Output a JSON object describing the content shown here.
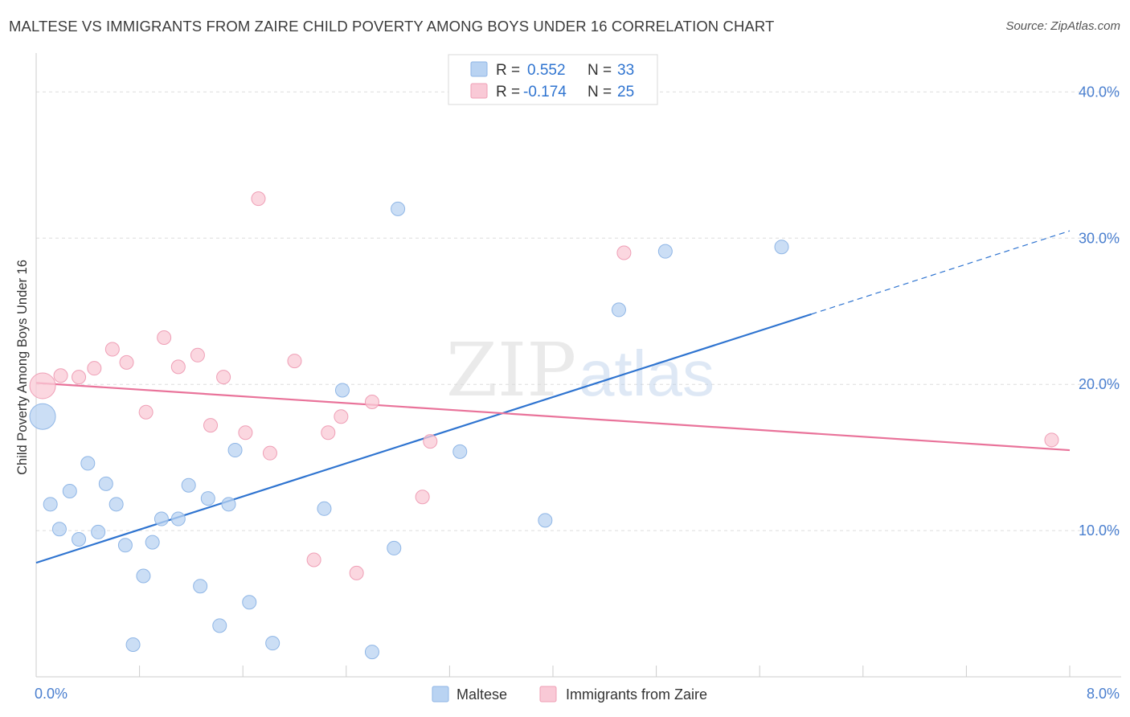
{
  "title": "MALTESE VS IMMIGRANTS FROM ZAIRE CHILD POVERTY AMONG BOYS UNDER 16 CORRELATION CHART",
  "source": "Source: ZipAtlas.com",
  "watermark": {
    "zip": "ZIP",
    "atlas": "atlas"
  },
  "colors": {
    "blue_fill": "#b9d3f2",
    "blue_stroke": "#8fb6e6",
    "blue_line": "#2f74d0",
    "pink_fill": "#f9c9d6",
    "pink_stroke": "#ef9fb6",
    "pink_line": "#e9739a",
    "axis_text": "#4a7fcf",
    "grid": "#dddddd"
  },
  "legend": {
    "rows": [
      {
        "r_label": "R = ",
        "r_value": "0.552",
        "n_label": "N = ",
        "n_value": "33"
      },
      {
        "r_label": "R = ",
        "r_value": "-0.174",
        "n_label": "N = ",
        "n_value": "25"
      }
    ]
  },
  "chart_data": {
    "type": "scatter",
    "title": "MALTESE VS IMMIGRANTS FROM ZAIRE CHILD POVERTY AMONG BOYS UNDER 16 CORRELATION CHART",
    "xlabel": "",
    "ylabel": "Child Poverty Among Boys Under 16",
    "xlim": [
      0,
      8
    ],
    "ylim": [
      0,
      42
    ],
    "x_tick_labels": [
      "0.0%",
      "8.0%"
    ],
    "y_ticks": [
      10,
      20,
      30,
      40
    ],
    "y_tick_labels": [
      "10.0%",
      "20.0%",
      "30.0%",
      "40.0%"
    ],
    "grid": true,
    "legend_position": "top-center",
    "series": [
      {
        "name": "Maltese",
        "color": "#b9d3f2",
        "r": 0.552,
        "n": 33,
        "trend": {
          "x0": 0.0,
          "y0": 7.8,
          "x1": 6.0,
          "y1": 24.8,
          "dash_to_x": 8.0,
          "dash_to_y": 30.5
        },
        "points": [
          {
            "x": 0.05,
            "y": 17.8,
            "size": "large"
          },
          {
            "x": 0.11,
            "y": 11.8
          },
          {
            "x": 0.18,
            "y": 10.1
          },
          {
            "x": 0.26,
            "y": 12.7
          },
          {
            "x": 0.33,
            "y": 9.4
          },
          {
            "x": 0.4,
            "y": 14.6
          },
          {
            "x": 0.48,
            "y": 9.9
          },
          {
            "x": 0.54,
            "y": 13.2
          },
          {
            "x": 0.62,
            "y": 11.8
          },
          {
            "x": 0.69,
            "y": 9.0
          },
          {
            "x": 0.75,
            "y": 2.2
          },
          {
            "x": 0.83,
            "y": 6.9
          },
          {
            "x": 0.9,
            "y": 9.2
          },
          {
            "x": 0.97,
            "y": 10.8
          },
          {
            "x": 1.1,
            "y": 10.8
          },
          {
            "x": 1.18,
            "y": 13.1
          },
          {
            "x": 1.27,
            "y": 6.2
          },
          {
            "x": 1.33,
            "y": 12.2
          },
          {
            "x": 1.42,
            "y": 3.5
          },
          {
            "x": 1.49,
            "y": 11.8
          },
          {
            "x": 1.54,
            "y": 15.5
          },
          {
            "x": 1.65,
            "y": 5.1
          },
          {
            "x": 1.83,
            "y": 2.3
          },
          {
            "x": 2.23,
            "y": 11.5
          },
          {
            "x": 2.37,
            "y": 19.6
          },
          {
            "x": 2.6,
            "y": 1.7
          },
          {
            "x": 2.77,
            "y": 8.8
          },
          {
            "x": 2.8,
            "y": 32.0
          },
          {
            "x": 3.28,
            "y": 15.4
          },
          {
            "x": 3.94,
            "y": 10.7
          },
          {
            "x": 4.51,
            "y": 25.1
          },
          {
            "x": 4.87,
            "y": 29.1
          },
          {
            "x": 5.77,
            "y": 29.4
          }
        ]
      },
      {
        "name": "Immigrants from Zaire",
        "color": "#f9c9d6",
        "r": -0.174,
        "n": 25,
        "trend": {
          "x0": 0.0,
          "y0": 20.1,
          "x1": 8.0,
          "y1": 15.5
        },
        "points": [
          {
            "x": 0.05,
            "y": 19.9,
            "size": "large"
          },
          {
            "x": 0.19,
            "y": 20.6
          },
          {
            "x": 0.33,
            "y": 20.5
          },
          {
            "x": 0.45,
            "y": 21.1
          },
          {
            "x": 0.59,
            "y": 22.4
          },
          {
            "x": 0.7,
            "y": 21.5
          },
          {
            "x": 0.85,
            "y": 18.1
          },
          {
            "x": 0.99,
            "y": 23.2
          },
          {
            "x": 1.1,
            "y": 21.2
          },
          {
            "x": 1.25,
            "y": 22.0
          },
          {
            "x": 1.35,
            "y": 17.2
          },
          {
            "x": 1.45,
            "y": 20.5
          },
          {
            "x": 1.62,
            "y": 16.7
          },
          {
            "x": 1.72,
            "y": 32.7
          },
          {
            "x": 1.81,
            "y": 15.3
          },
          {
            "x": 2.0,
            "y": 21.6
          },
          {
            "x": 2.15,
            "y": 8.0
          },
          {
            "x": 2.26,
            "y": 16.7
          },
          {
            "x": 2.36,
            "y": 17.8
          },
          {
            "x": 2.48,
            "y": 7.1
          },
          {
            "x": 2.6,
            "y": 18.8
          },
          {
            "x": 2.99,
            "y": 12.3
          },
          {
            "x": 3.05,
            "y": 16.1
          },
          {
            "x": 4.55,
            "y": 29.0
          },
          {
            "x": 7.86,
            "y": 16.2
          }
        ]
      }
    ]
  }
}
